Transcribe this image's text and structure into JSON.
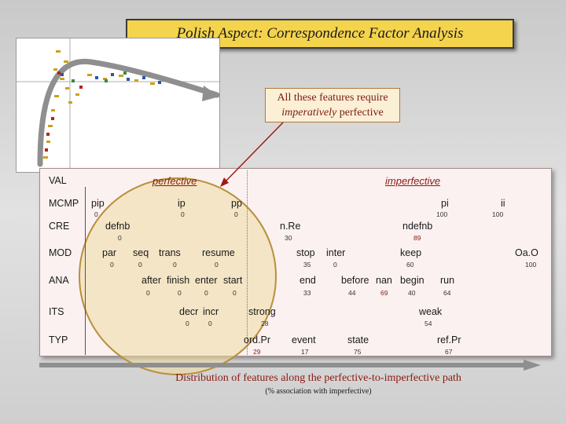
{
  "title": "Polish Aspect: Correspondence Factor Analysis",
  "callout": {
    "line1": "All these features require",
    "line2_em": "imperatively",
    "line2_rest": " perfective"
  },
  "headers": {
    "perfective": "perfective",
    "imperfective": "imperfective"
  },
  "rows": [
    "VAL",
    "MCMP",
    "CRE",
    "MOD",
    "ANA",
    "ITS",
    "TYP"
  ],
  "features": {
    "MCMP": [
      {
        "label": "pip",
        "num": "0"
      },
      {
        "label": "ip",
        "num": "0"
      },
      {
        "label": "pp",
        "num": "0"
      },
      {
        "label": "pi",
        "num": "100"
      },
      {
        "label": "ii",
        "num": "100"
      }
    ],
    "CRE": [
      {
        "label": "defnb",
        "num": "0"
      },
      {
        "label": "n.Re",
        "num": "30"
      },
      {
        "label": "ndefnb",
        "num": "89"
      }
    ],
    "MOD": [
      {
        "label": "par",
        "num": "0"
      },
      {
        "label": "seq",
        "num": "0"
      },
      {
        "label": "trans",
        "num": "0"
      },
      {
        "label": "resume",
        "num": "0"
      },
      {
        "label": "stop",
        "num": "35"
      },
      {
        "label": "inter",
        "num": "0"
      },
      {
        "label": "keep",
        "num": "60"
      },
      {
        "label": "Oa.O",
        "num": "100"
      }
    ],
    "ANA": [
      {
        "label": "after",
        "num": "0"
      },
      {
        "label": "finish",
        "num": "0"
      },
      {
        "label": "enter",
        "num": "0"
      },
      {
        "label": "start",
        "num": "0"
      },
      {
        "label": "end",
        "num": "33"
      },
      {
        "label": "before",
        "num": "44"
      },
      {
        "label": "nan",
        "num": "69"
      },
      {
        "label": "begin",
        "num": "40"
      },
      {
        "label": "run",
        "num": "64"
      }
    ],
    "ITS": [
      {
        "label": "decr",
        "num": "0"
      },
      {
        "label": "incr",
        "num": "0"
      },
      {
        "label": "strong",
        "num": "28"
      },
      {
        "label": "weak",
        "num": "54"
      }
    ],
    "TYP": [
      {
        "label": "ord.Pr",
        "num": "29"
      },
      {
        "label": "event",
        "num": "17"
      },
      {
        "label": "state",
        "num": "75"
      },
      {
        "label": "ref.Pr",
        "num": "67"
      }
    ]
  },
  "caption": {
    "main": "Distribution of features along the perfective-to-imperfective path",
    "sub": "(% association with imperfective)"
  },
  "colors": {
    "title_bg": "#f4d34d",
    "accent_red": "#8b1a10",
    "circle": "#edd ba0",
    "arrow": "#8f8f8f"
  }
}
